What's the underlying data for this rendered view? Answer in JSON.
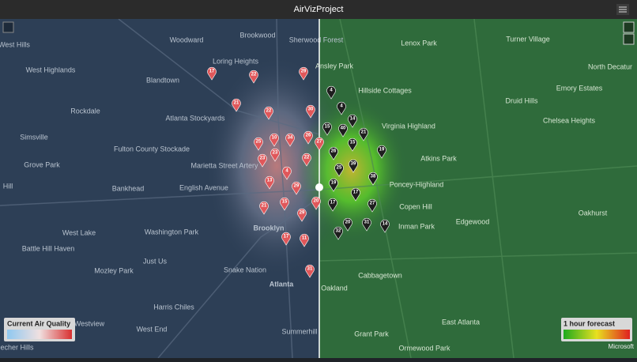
{
  "header": {
    "title": "AirVizProject"
  },
  "map": {
    "places_left": [
      "Woodward",
      "Brookwood",
      "Sherwood Forest",
      "West Hills",
      "West Highlands",
      "Loring Heights",
      "Blandtown",
      "Rockdale",
      "Atlanta Stockyards",
      "Simsville",
      "Fulton County Stockade",
      "Grove Park",
      "Marietta Street Artery",
      "Bankhead",
      "English Avenue",
      "Hill",
      "West Lake",
      "Washington Park",
      "Brooklyn",
      "Battle Hill Haven",
      "Just Us",
      "Mozley Park",
      "Snake Nation",
      "Atlanta",
      "Harris Chiles",
      "Westview",
      "West End",
      "Summerhill",
      "Beecher Hills"
    ],
    "places_right": [
      "Ansley Park",
      "Lenox Park",
      "Turner Village",
      "North Decatur",
      "Emory Estates",
      "Hillside Cottages",
      "Druid Hills",
      "Virginia Highland",
      "Chelsea Heights",
      "Atkins Park",
      "Poncey-Highland",
      "Copen Hill",
      "Edgewood",
      "Oakhurst",
      "Inman Park",
      "Cabbagetown",
      "Oakland",
      "Grant Park",
      "East Atlanta",
      "Ormewood Park"
    ],
    "markers_current": [
      17,
      22,
      29,
      21,
      22,
      30,
      25,
      10,
      34,
      26,
      23,
      23,
      22,
      4,
      13,
      29,
      21,
      15,
      29,
      17,
      11,
      31,
      20,
      27
    ],
    "markers_forecast": [
      4,
      4,
      14,
      15,
      40,
      21,
      15,
      26,
      19,
      39,
      25,
      38,
      19,
      17,
      17,
      27,
      31,
      20,
      14,
      32
    ]
  },
  "legend_current": {
    "title": "Current Air Quality"
  },
  "legend_forecast": {
    "title": "1 hour forecast"
  },
  "attribution": "Microsoft"
}
